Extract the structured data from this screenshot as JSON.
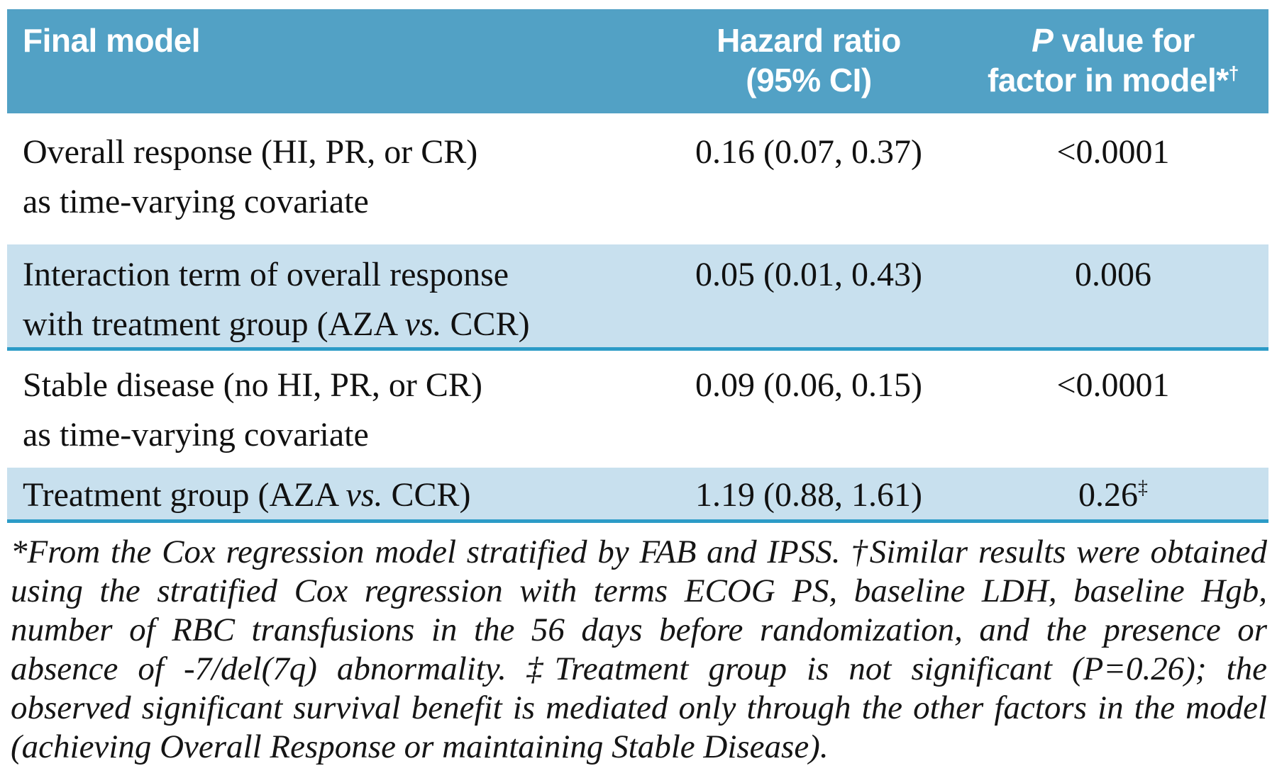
{
  "colors": {
    "header_bg": "#52a1c5",
    "shaded_row_bg": "#c8e0ee",
    "divider_rule": "#2c9bc7",
    "header_text": "#ffffff",
    "body_text": "#111111"
  },
  "table": {
    "header": {
      "final_model": "Final model",
      "hazard_line1": "Hazard ratio",
      "hazard_line2": "(95% CI)",
      "p_italic": "P",
      "p_rest": " value for",
      "p_line2": "factor in model",
      "p_marker_ast": "*",
      "p_marker_dag": "†"
    },
    "rows": [
      {
        "factor": {
          "line1_pre": "Overall response (HI, PR, or CR)",
          "line1_it": "",
          "line1_post": "",
          "line2_pre": "as time-varying covariate",
          "line2_it": "",
          "line2_post": ""
        },
        "hazard_ratio": "0.16 (0.07, 0.37)",
        "p_value": "<0.0001",
        "p_sup": ""
      },
      {
        "factor": {
          "line1_pre": "Interaction term of overall response",
          "line1_it": "",
          "line1_post": "",
          "line2_pre": "with treatment group (AZA ",
          "line2_it": "vs.",
          "line2_post": " CCR)"
        },
        "hazard_ratio": "0.05 (0.01, 0.43)",
        "p_value": "0.006",
        "p_sup": ""
      },
      {
        "factor": {
          "line1_pre": "Stable disease (no HI, PR, or CR)",
          "line1_it": "",
          "line1_post": "",
          "line2_pre": "as time-varying covariate",
          "line2_it": "",
          "line2_post": ""
        },
        "hazard_ratio": "0.09 (0.06, 0.15)",
        "p_value": "<0.0001",
        "p_sup": ""
      },
      {
        "factor": {
          "line1_pre": "Treatment group (AZA ",
          "line1_it": "vs.",
          "line1_post": " CCR)"
        },
        "hazard_ratio": "1.19 (0.88, 1.61)",
        "p_value": "0.26",
        "p_sup": "‡"
      }
    ]
  },
  "footnote": {
    "text": "*From the Cox regression model stratified by FAB and IPSS. †Similar results were obtained using the stratified Cox regression with terms ECOG PS, baseline LDH, baseline Hgb, number of RBC transfusions in the 56 days before randomization, and the presence or absence of -7/del(7q) abnormality. ‡Treatment group is not significant (P=0.26); the observed significant survival benefit is mediated only through the other factors in the model (achieving Overall Response or maintaining Stable Disease)."
  }
}
